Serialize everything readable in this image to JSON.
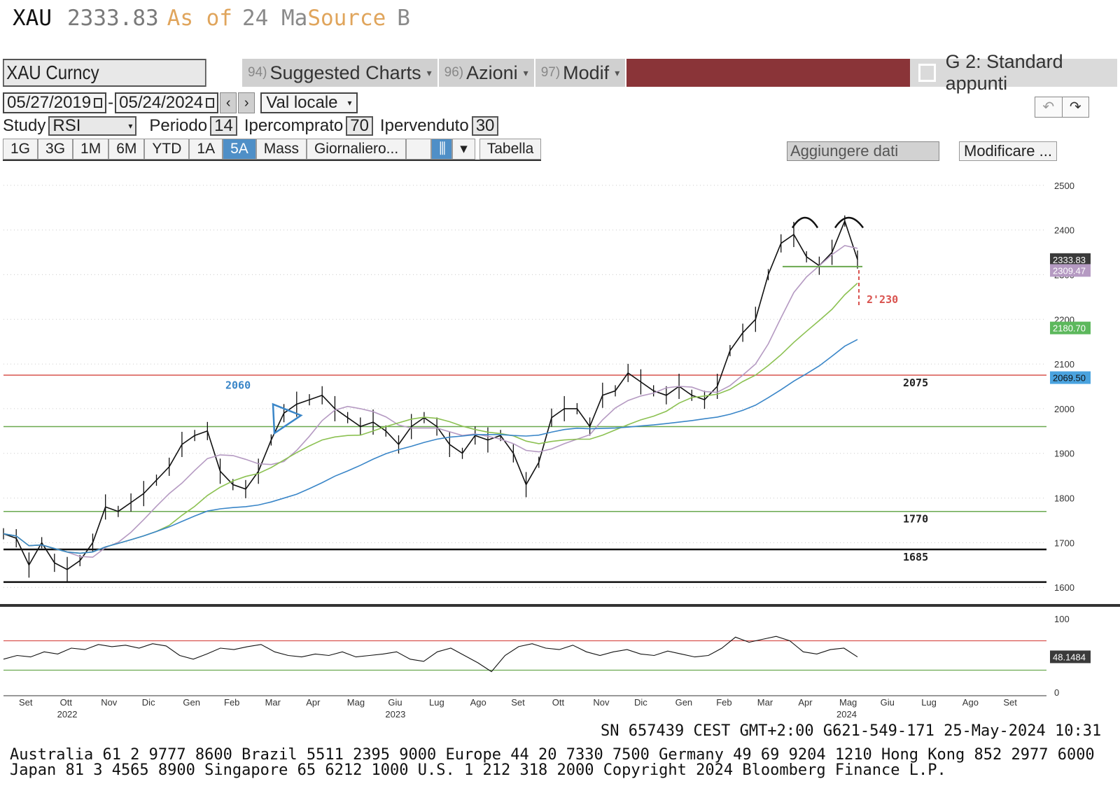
{
  "title_bar": {
    "ticker": "XAU",
    "price": "2333.83",
    "as_of": "As of",
    "date": "24 Ma",
    "source": "Source",
    "source_code": "B"
  },
  "toolbar": {
    "security": "XAU Curncy",
    "menu": [
      {
        "num": "94)",
        "label": "Suggested Charts"
      },
      {
        "num": "96)",
        "label": "Azioni"
      },
      {
        "num": "97)",
        "label": "Modif"
      }
    ],
    "layout_label": "G 2: Standard appunti"
  },
  "dates": {
    "start": "05/27/2019",
    "sep": "-",
    "end": "05/24/2024",
    "currency": "Val locale"
  },
  "study": {
    "label": "Study",
    "value": "RSI",
    "period_label": "Periodo",
    "period": "14",
    "ob_label": "Ipercomprato",
    "ob": "70",
    "os_label": "Ipervenduto",
    "os": "30"
  },
  "periods": [
    "1G",
    "3G",
    "1M",
    "6M",
    "YTD",
    "1A",
    "5A",
    "Mass",
    "Giornaliero...",
    "Tabella"
  ],
  "active_period": "5A",
  "add_data_placeholder": "Aggiungere dati",
  "modify_label": "Modificare ...",
  "colors": {
    "price": "#111111",
    "ma_purple": "#b59ac2",
    "ma_green": "#8cc152",
    "ma_blue": "#3a86c8",
    "resistance_red": "#d9534f",
    "support_green": "#6aa84f",
    "rsi_ob": "#d9534f",
    "rsi_os": "#6aa84f"
  },
  "chart_data": {
    "type": "line",
    "instrument": "XAU Curncy",
    "y_ticks": [
      1600,
      1700,
      1800,
      1900,
      2000,
      2100,
      2200,
      2300,
      2400,
      2500
    ],
    "ylim": [
      1580,
      2520
    ],
    "x_months": [
      "Set",
      "Ott",
      "Nov",
      "Dic",
      "Gen",
      "Feb",
      "Mar",
      "Apr",
      "Mag",
      "Giu",
      "Lug",
      "Ago",
      "Set",
      "Ott",
      "Nov",
      "Dic",
      "Gen",
      "Feb",
      "Mar",
      "Apr",
      "Mag",
      "Giu",
      "Lug",
      "Ago",
      "Set"
    ],
    "x_years": [
      {
        "label": "2022",
        "month_index": 1
      },
      {
        "label": "2023",
        "month_index": 9
      },
      {
        "label": "2024",
        "month_index": 20
      }
    ],
    "price_series": {
      "name": "XAU",
      "values": [
        1720,
        1710,
        1650,
        1700,
        1655,
        1640,
        1660,
        1700,
        1780,
        1770,
        1790,
        1810,
        1840,
        1870,
        1920,
        1940,
        1950,
        1860,
        1830,
        1820,
        1860,
        1930,
        1990,
        2010,
        2020,
        2030,
        2000,
        1980,
        1960,
        1970,
        1950,
        1920,
        1960,
        1980,
        1960,
        1920,
        1900,
        1940,
        1930,
        1940,
        1900,
        1830,
        1880,
        1980,
        2000,
        2000,
        1960,
        2030,
        2040,
        2080,
        2060,
        2040,
        2030,
        2050,
        2030,
        2020,
        2050,
        2130,
        2170,
        2200,
        2300,
        2370,
        2390,
        2340,
        2320,
        2350,
        2420,
        2333.83
      ]
    },
    "moving_averages": [
      {
        "name": "MA purple",
        "last": "2309.47"
      },
      {
        "name": "MA green",
        "last": "2180.70"
      },
      {
        "name": "MA blue",
        "last": "2069.50"
      }
    ],
    "last_price_label": "2333.83",
    "horizontal_levels": [
      {
        "value": 2075,
        "label": "2075",
        "color": "red"
      },
      {
        "value": 1960,
        "label": "",
        "color": "green"
      },
      {
        "value": 1770,
        "label": "1770",
        "color": "green"
      },
      {
        "value": 1685,
        "label": "1685",
        "color": "black"
      },
      {
        "value": 1612,
        "label": "",
        "color": "black"
      }
    ],
    "annotations": [
      {
        "text": "2060",
        "color": "blue"
      },
      {
        "text": "2'230",
        "color": "red"
      }
    ],
    "rsi": {
      "ticks": [
        0,
        100
      ],
      "overbought": 70,
      "oversold": 30,
      "last": "48.1484",
      "values": [
        45,
        50,
        48,
        55,
        52,
        60,
        58,
        65,
        62,
        64,
        60,
        66,
        63,
        50,
        45,
        52,
        60,
        58,
        62,
        65,
        55,
        50,
        48,
        52,
        50,
        55,
        48,
        50,
        52,
        55,
        45,
        42,
        55,
        60,
        50,
        40,
        28,
        50,
        62,
        66,
        60,
        58,
        64,
        55,
        50,
        55,
        58,
        52,
        50,
        56,
        52,
        48,
        50,
        60,
        75,
        68,
        72,
        76,
        70,
        55,
        52,
        58,
        60,
        48
      ]
    }
  },
  "footer": {
    "session": "SN 657439 CEST GMT+2:00 G621-549-171 25-May-2024 10:31",
    "line1": "Australia 61 2 9777 8600 Brazil 5511 2395 9000 Europe 44 20 7330 7500 Germany 49 69 9204 1210 Hong Kong 852 2977 6000",
    "line2": "Japan 81 3 4565 8900          Singapore 65 6212 1000         U.S. 1 212 318 2000          Copyright 2024 Bloomberg Finance L.P."
  }
}
